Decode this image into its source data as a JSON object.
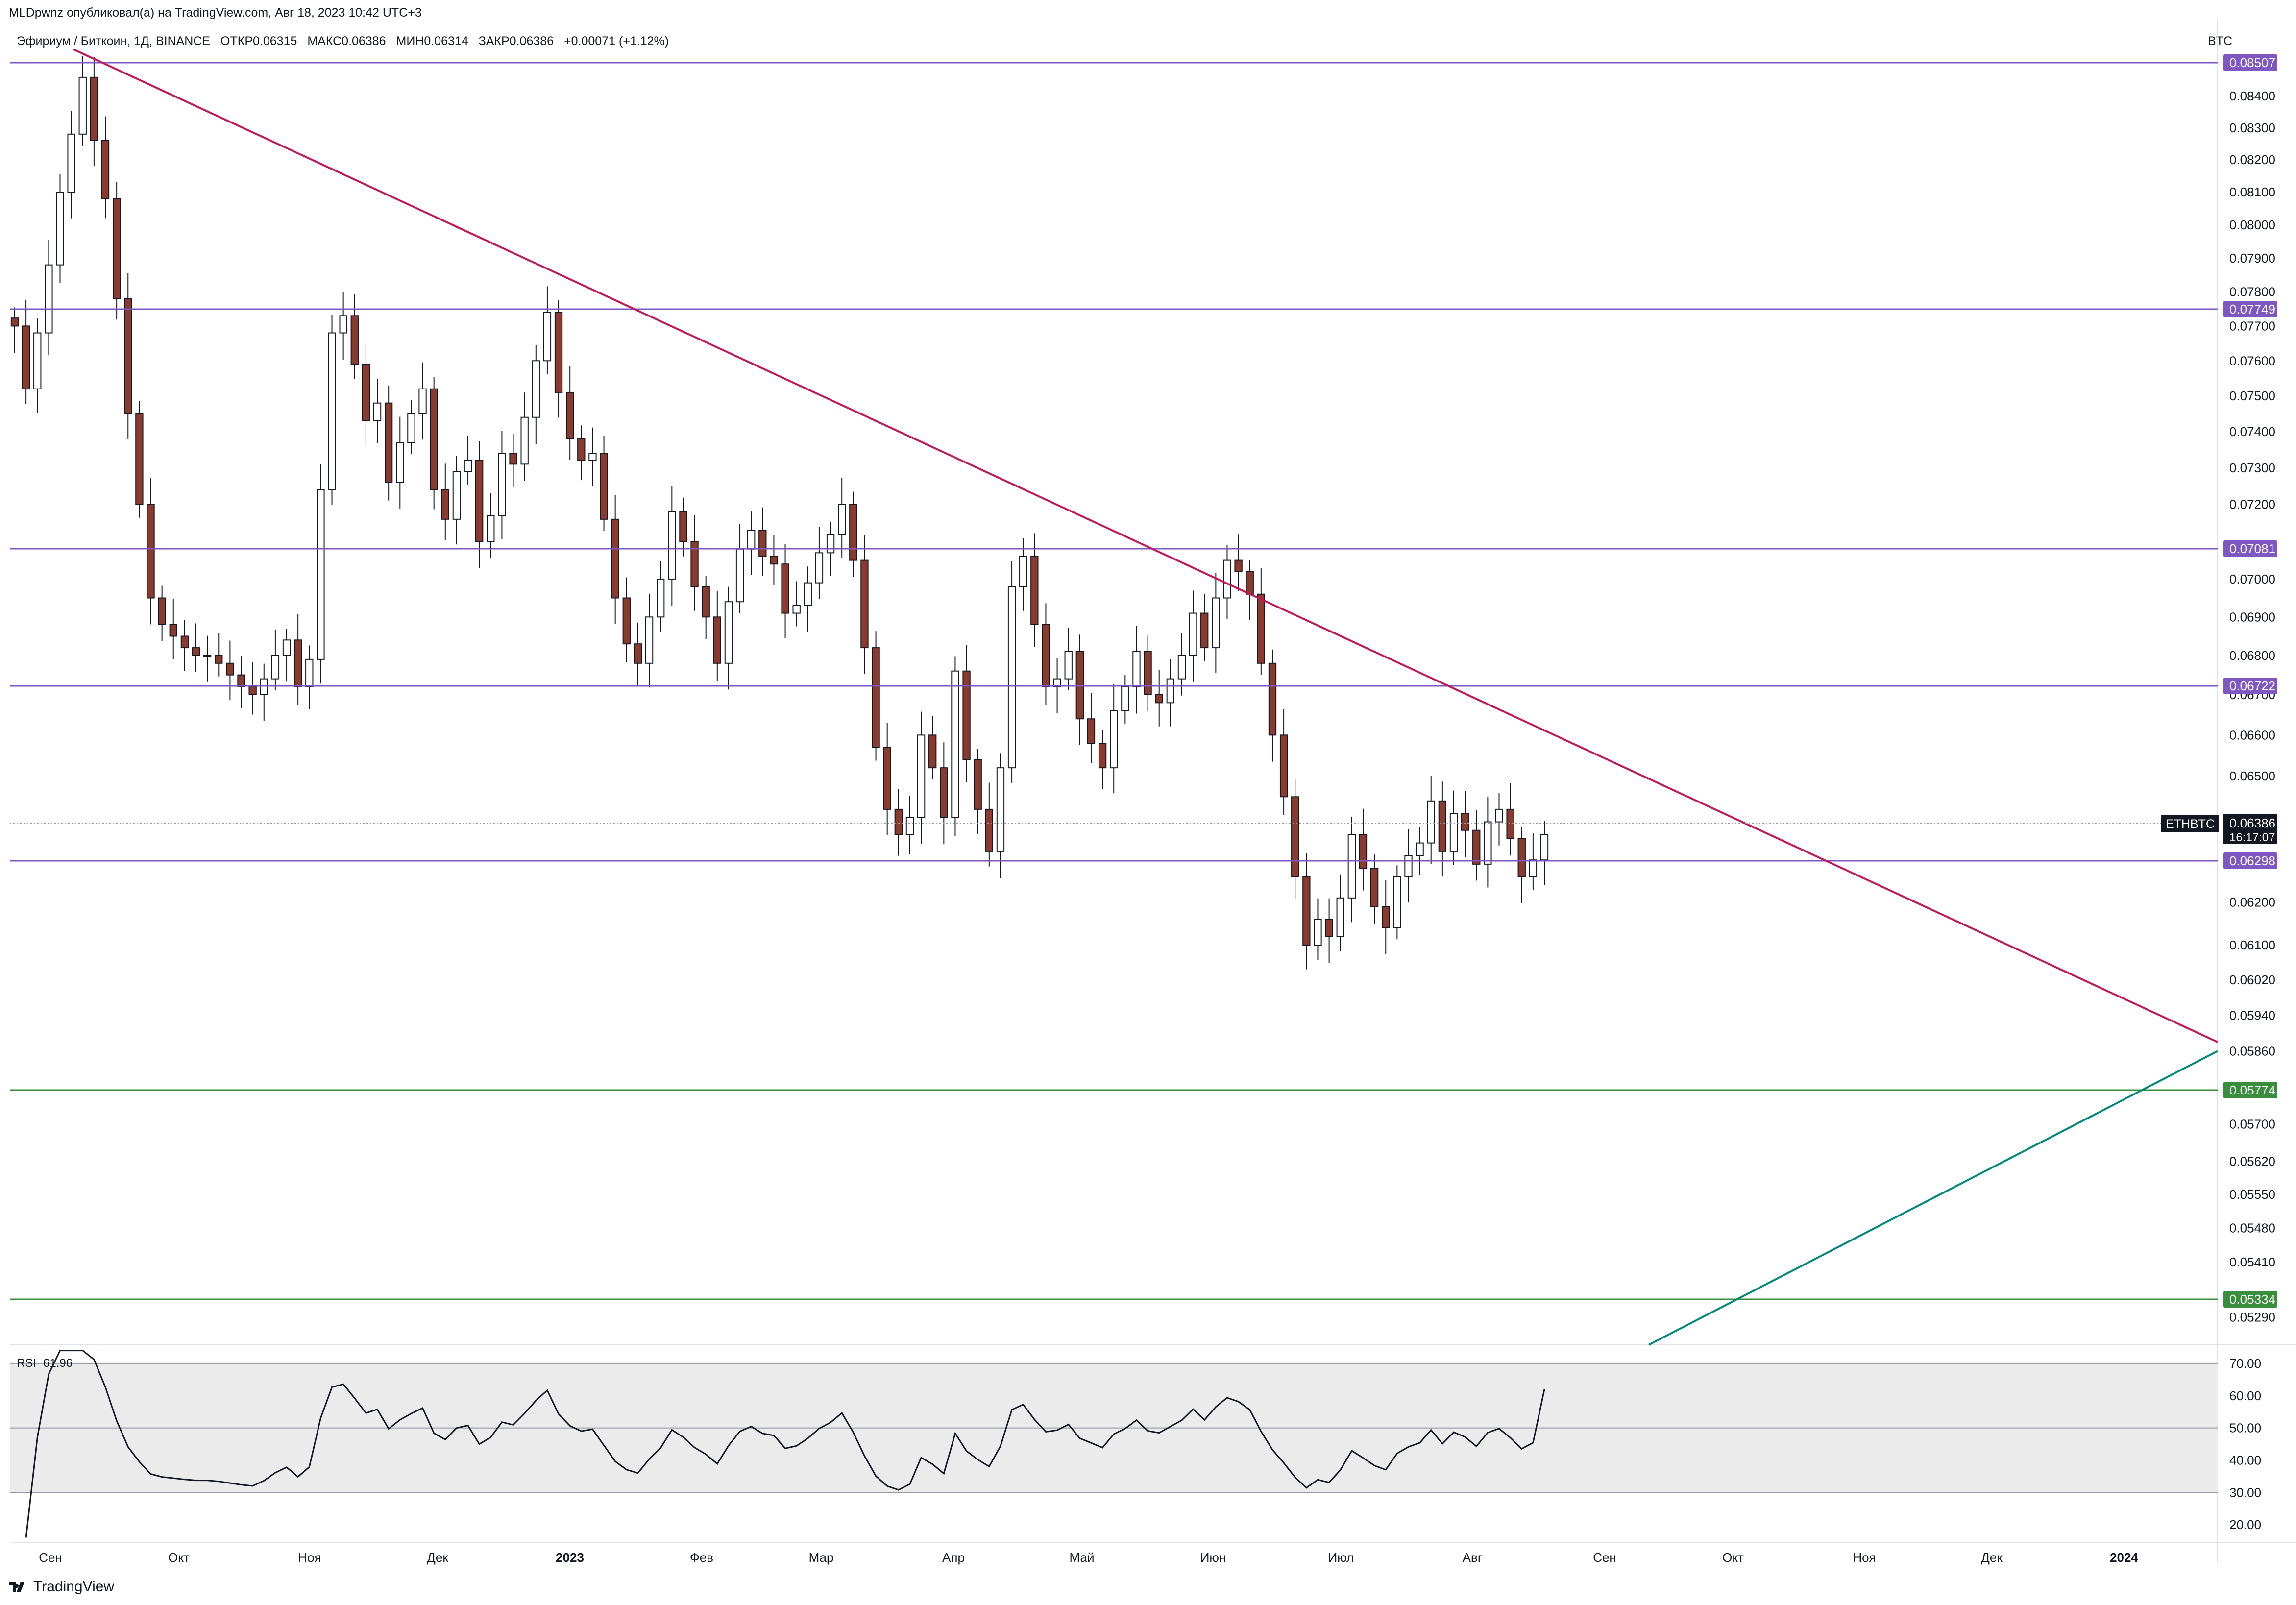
{
  "header": {
    "published": "MLDpwnz опубликовал(а) на TradingView.com, Авг 18, 2023 10:42 UTC+3",
    "legend_symbol": "Эфириум / Биткоин, 1Д, BINANCE",
    "open": "ОТКР0.06315",
    "high": "МАКС0.06386",
    "low": "МИН0.06314",
    "close": "ЗАКР0.06386",
    "change": "+0.00071 (+1.12%)",
    "currency": "BTC"
  },
  "price_axis": {
    "ticks": [
      "0.08400",
      "0.08300",
      "0.08200",
      "0.08100",
      "0.08000",
      "0.07900",
      "0.07800",
      "0.07700",
      "0.07600",
      "0.07500",
      "0.07400",
      "0.07300",
      "0.07200",
      "0.07000",
      "0.06900",
      "0.06800",
      "0.06700",
      "0.06600",
      "0.06500",
      "0.06200",
      "0.06100",
      "0.06020",
      "0.05940",
      "0.05860",
      "0.05700",
      "0.05620",
      "0.05550",
      "0.05480",
      "0.05410",
      "0.05290"
    ],
    "current_symbol": "ETHBTC",
    "current_price": "0.06386",
    "countdown": "16:17:07"
  },
  "levels": [
    {
      "label": "0.08507",
      "color": "#7e57c2"
    },
    {
      "label": "0.07749",
      "color": "#7e57c2"
    },
    {
      "label": "0.07081",
      "color": "#7e57c2"
    },
    {
      "label": "0.06722",
      "color": "#7e57c2"
    },
    {
      "label": "0.06298",
      "color": "#7e57c2"
    },
    {
      "label": "0.05774",
      "color": "#388e3c"
    },
    {
      "label": "0.05334",
      "color": "#388e3c"
    }
  ],
  "time_axis": {
    "labels": [
      "Сен",
      "Окт",
      "Ноя",
      "Дек",
      "2023",
      "Фев",
      "Мар",
      "Апр",
      "Май",
      "Июн",
      "Июл",
      "Авг",
      "Сен",
      "Окт",
      "Ноя",
      "Дек",
      "2024"
    ]
  },
  "rsi": {
    "label": "RSI",
    "value": "61.96",
    "ticks": [
      "70.00",
      "60.00",
      "50.00",
      "40.00",
      "30.00",
      "20.00"
    ]
  },
  "footer": {
    "brand": "TradingView"
  },
  "colors": {
    "resistance": "#7e57c2",
    "support": "#388e3c",
    "downtrend": "#c2185b",
    "uptrend": "#00897b",
    "candle_up": "#ffffff",
    "candle_down": "#8b3a2e",
    "wick": "#131722"
  },
  "chart_data": {
    "type": "candlestick",
    "symbol": "ETHBTC",
    "title": "Эфириум / Биткоин, 1Д, BINANCE",
    "x_labels": [
      "Сен",
      "Окт",
      "Ноя",
      "Дек",
      "2023",
      "Фев",
      "Мар",
      "Апр",
      "Май",
      "Июн",
      "Июл",
      "Авг"
    ],
    "ylim": [
      0.0525,
      0.0855
    ],
    "scale": "log",
    "close_series": [
      0.077,
      0.0752,
      0.0768,
      0.0788,
      0.081,
      0.0828,
      0.0846,
      0.0826,
      0.0808,
      0.0778,
      0.0745,
      0.072,
      0.0695,
      0.0688,
      0.0685,
      0.0682,
      0.068,
      0.068,
      0.0678,
      0.0675,
      0.0672,
      0.067,
      0.0674,
      0.068,
      0.0684,
      0.0672,
      0.0679,
      0.0724,
      0.0768,
      0.0773,
      0.0759,
      0.0743,
      0.0748,
      0.0726,
      0.0737,
      0.0745,
      0.0752,
      0.0724,
      0.0716,
      0.0729,
      0.0732,
      0.071,
      0.0717,
      0.0734,
      0.0731,
      0.0744,
      0.076,
      0.0774,
      0.0751,
      0.0738,
      0.0732,
      0.0734,
      0.0716,
      0.0695,
      0.0683,
      0.0678,
      0.069,
      0.07,
      0.0718,
      0.071,
      0.0698,
      0.069,
      0.0678,
      0.0694,
      0.0708,
      0.0713,
      0.0706,
      0.0704,
      0.0691,
      0.0693,
      0.0699,
      0.0707,
      0.0712,
      0.072,
      0.0705,
      0.0682,
      0.0657,
      0.0642,
      0.0636,
      0.064,
      0.066,
      0.0652,
      0.064,
      0.0676,
      0.0654,
      0.0642,
      0.0632,
      0.0652,
      0.0698,
      0.0706,
      0.0688,
      0.0672,
      0.0674,
      0.0681,
      0.0664,
      0.0658,
      0.0652,
      0.0666,
      0.0672,
      0.0681,
      0.067,
      0.0668,
      0.0674,
      0.068,
      0.0691,
      0.0682,
      0.0695,
      0.0705,
      0.0702,
      0.0696,
      0.0678,
      0.066,
      0.0645,
      0.0626,
      0.061,
      0.0616,
      0.0612,
      0.0621,
      0.0636,
      0.0628,
      0.0619,
      0.0614,
      0.0626,
      0.0631,
      0.0634,
      0.0644,
      0.0632,
      0.0641,
      0.0637,
      0.0629,
      0.0639,
      0.0642,
      0.0635,
      0.0626,
      0.063,
      0.0636
    ],
    "horizontal_levels": [
      0.08507,
      0.07749,
      0.07081,
      0.06722,
      0.06298,
      0.05774,
      0.05334
    ],
    "rsi": {
      "period": 14,
      "last": 61.96,
      "ylim": [
        15,
        75
      ],
      "bands": [
        30,
        50,
        70
      ]
    }
  }
}
